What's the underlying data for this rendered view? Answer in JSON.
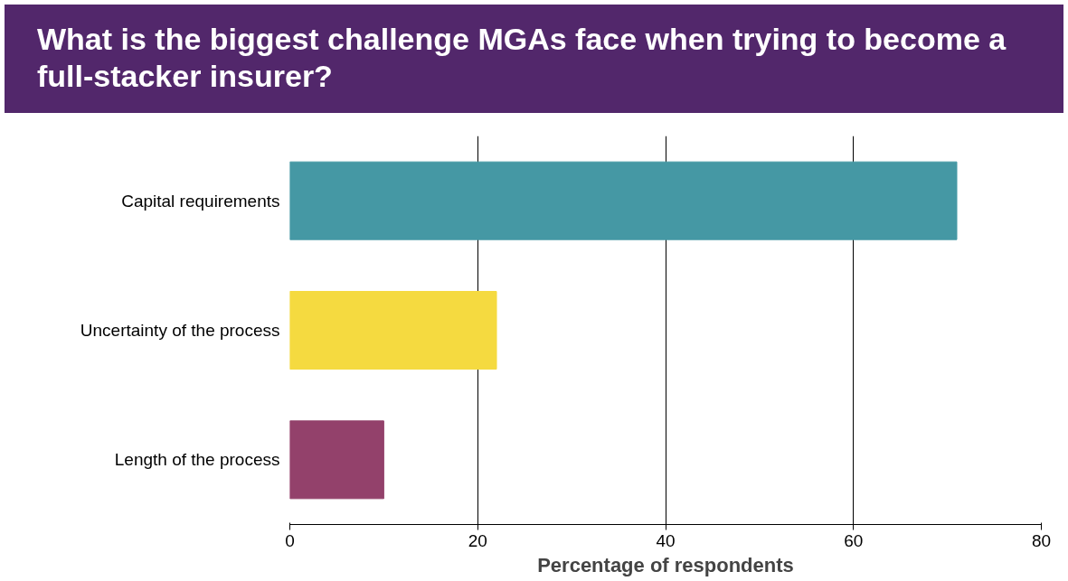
{
  "chart_data": {
    "type": "bar",
    "orientation": "horizontal",
    "title": "What is the biggest challenge MGAs face when trying to become a full-stacker insurer?",
    "categories": [
      "Capital requirements",
      "Uncertainty of the process",
      "Length of the process"
    ],
    "values": [
      71,
      22,
      10
    ],
    "colors": [
      "#4598a4",
      "#f5da40",
      "#93416b"
    ],
    "xlim": [
      0,
      80
    ],
    "xticks": [
      0,
      20,
      40,
      60,
      80
    ],
    "xlabel": "Percentage of respondents",
    "grid": "x"
  }
}
